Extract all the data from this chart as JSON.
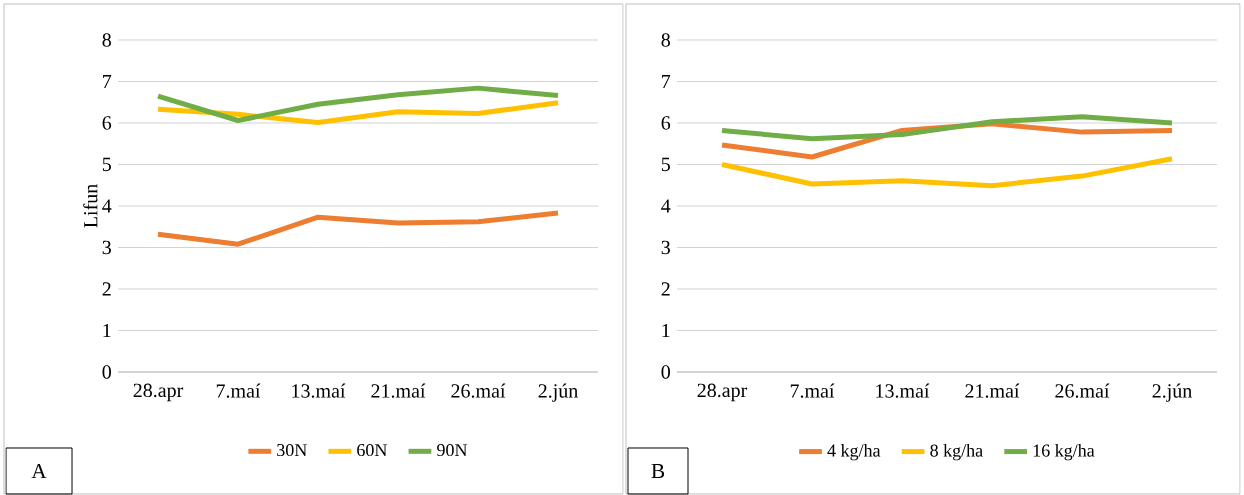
{
  "chart_data": [
    {
      "type": "line",
      "ylabel": "Lifun",
      "categories": [
        "28.apr",
        "7.maí",
        "13.maí",
        "21.maí",
        "26.maí",
        "2.jún"
      ],
      "series": [
        {
          "name": "30N",
          "color": "#ed7d31",
          "values": [
            3.32,
            3.08,
            3.73,
            3.59,
            3.62,
            3.83
          ]
        },
        {
          "name": "60N",
          "color": "#ffc000",
          "values": [
            6.33,
            6.21,
            6.01,
            6.27,
            6.23,
            6.49
          ]
        },
        {
          "name": "90N",
          "color": "#70ad47",
          "values": [
            6.65,
            6.06,
            6.45,
            6.68,
            6.84,
            6.66
          ]
        }
      ],
      "ylim": [
        0,
        8
      ],
      "yticks": [
        0,
        1,
        2,
        3,
        4,
        5,
        6,
        7,
        8
      ],
      "grid": "y",
      "legend": "bottom",
      "marker": "none",
      "line_style": "solid",
      "annotations": [
        "A"
      ]
    },
    {
      "type": "line",
      "categories": [
        "28.apr",
        "7.maí",
        "13.maí",
        "21.maí",
        "26.maí",
        "2.jún"
      ],
      "series": [
        {
          "name": "4 kg/ha",
          "color": "#ed7d31",
          "values": [
            5.47,
            5.18,
            5.82,
            5.98,
            5.78,
            5.82
          ]
        },
        {
          "name": "8 kg/ha",
          "color": "#ffc000",
          "values": [
            5.0,
            4.53,
            4.61,
            4.49,
            4.72,
            5.14
          ]
        },
        {
          "name": "16 kg/ha",
          "color": "#70ad47",
          "values": [
            5.82,
            5.62,
            5.72,
            6.03,
            6.15,
            6.0
          ]
        }
      ],
      "ylim": [
        0,
        8
      ],
      "yticks": [
        0,
        1,
        2,
        3,
        4,
        5,
        6,
        7,
        8
      ],
      "grid": "y",
      "legend": "bottom",
      "marker": "none",
      "line_style": "solid",
      "annotations": [
        "B"
      ]
    }
  ]
}
